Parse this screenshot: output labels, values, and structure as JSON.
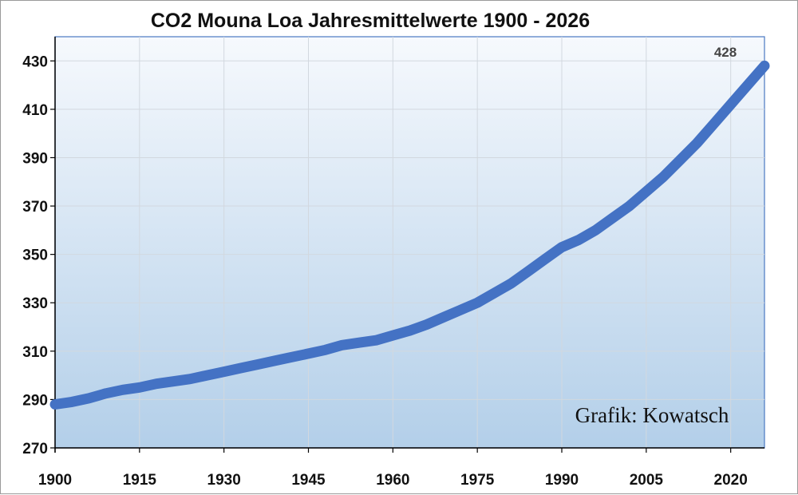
{
  "chart_data": {
    "type": "line",
    "title": "CO2 Mouna Loa Jahresmittelwerte 1900 - 2026",
    "xlabel": "",
    "ylabel": "",
    "xlim": [
      1900,
      2026
    ],
    "ylim": [
      270,
      440
    ],
    "x_ticks": [
      1900,
      1915,
      1930,
      1945,
      1960,
      1975,
      1990,
      2005,
      2020
    ],
    "y_ticks": [
      270,
      290,
      310,
      330,
      350,
      370,
      390,
      410,
      430
    ],
    "grid": true,
    "legend": "none",
    "annotations": [
      "Grafik: Kowatsch",
      "428"
    ],
    "series": [
      {
        "color": "#4472C4",
        "x": [
          1900,
          1903,
          1906,
          1909,
          1912,
          1915,
          1918,
          1921,
          1924,
          1927,
          1930,
          1933,
          1936,
          1939,
          1942,
          1945,
          1948,
          1951,
          1954,
          1957,
          1960,
          1963,
          1966,
          1969,
          1972,
          1975,
          1978,
          1981,
          1984,
          1987,
          1990,
          1993,
          1996,
          1999,
          2002,
          2005,
          2008,
          2011,
          2014,
          2017,
          2020,
          2023,
          2026
        ],
        "values": [
          288,
          289,
          290.5,
          292.5,
          294,
          295,
          296.5,
          297.5,
          298.5,
          300,
          301.5,
          303,
          304.5,
          306,
          307.5,
          309,
          310.5,
          312.5,
          313.5,
          314.5,
          316.5,
          318.5,
          321,
          324,
          327,
          330,
          334,
          338,
          343,
          348,
          353,
          356,
          360,
          365,
          370,
          376,
          382,
          389,
          396,
          404,
          412,
          420,
          428
        ]
      }
    ]
  }
}
